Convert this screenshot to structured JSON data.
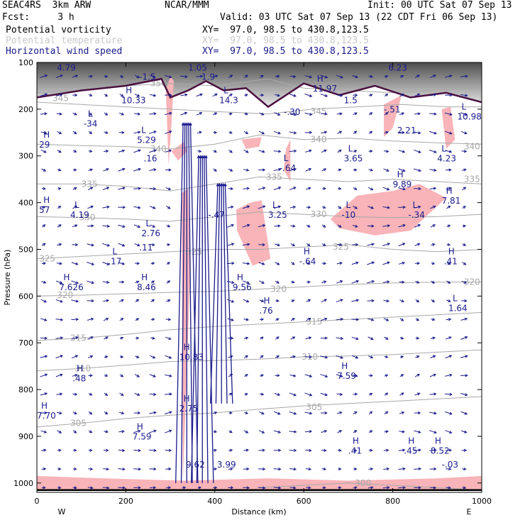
{
  "header": {
    "model": "SEAC4RS  3km ARW",
    "fcst": "Fcst:     3 h",
    "center": "NCAR/MMM",
    "init": "Init: 00 UTC Sat 07 Sep 13",
    "valid": "Valid: 03 UTC Sat 07 Sep 13 (22 CDT Fri 06 Sep 13)",
    "fields": [
      {
        "name": "Potential vorticity",
        "xy": "XY=  97.0, 98.5 to 430.8,123.5",
        "color": "#000000"
      },
      {
        "name": "Potential temperature",
        "xy": "XY=  97.0, 98.5 to 430.8,123.5",
        "color": "#c8c8c8"
      },
      {
        "name": "Horizontal wind speed",
        "xy": "XY=  97.0, 98.5 to 430.8,123.5",
        "color": "#1a1a8c"
      }
    ]
  },
  "chart_data": {
    "type": "cross-section",
    "xlabel": "Distance (km)",
    "ylabel": "Pressure (hPa)",
    "xlim": [
      0,
      1000
    ],
    "ylim": [
      1020,
      100
    ],
    "x_ticks": [
      0,
      200,
      400,
      600,
      800,
      1000
    ],
    "y_ticks": [
      100,
      200,
      300,
      400,
      500,
      600,
      700,
      800,
      900,
      1000
    ],
    "x_end_labels": {
      "left": "W",
      "right": "E"
    },
    "colors": {
      "pv_fill": "#f8b4b8",
      "theta": "#a8a8a8",
      "wind": "#1a1a8c",
      "tropopause": "#4a1040"
    },
    "theta_contours": [
      {
        "label": "350",
        "x": [
          0,
          100,
          200,
          300,
          400,
          520,
          600,
          700,
          800,
          900,
          1000
        ],
        "p": [
          165,
          160,
          150,
          145,
          150,
          135,
          155,
          160,
          165,
          160,
          155
        ]
      },
      {
        "label": "345",
        "x": [
          0,
          100,
          200,
          300,
          400,
          520,
          620,
          720,
          820,
          920,
          1000
        ],
        "p": [
          185,
          190,
          195,
          200,
          205,
          210,
          200,
          195,
          190,
          195,
          195
        ]
      },
      {
        "label": "340",
        "x": [
          0,
          100,
          200,
          300,
          400,
          500,
          600,
          700,
          800,
          900,
          1000
        ],
        "p": [
          275,
          278,
          280,
          285,
          275,
          255,
          265,
          262,
          268,
          272,
          275
        ]
      },
      {
        "label": "335",
        "x": [
          0,
          100,
          200,
          300,
          400,
          500,
          600,
          700,
          800,
          900,
          1000
        ],
        "p": [
          360,
          360,
          365,
          375,
          360,
          345,
          350,
          355,
          350,
          355,
          360
        ]
      },
      {
        "label": "330",
        "x": [
          0,
          100,
          200,
          300,
          400,
          500,
          600,
          700,
          800,
          900,
          1000
        ],
        "p": [
          430,
          432,
          435,
          440,
          430,
          420,
          425,
          430,
          432,
          430,
          425
        ]
      },
      {
        "label": "325",
        "x": [
          0,
          100,
          200,
          300,
          400,
          500,
          600,
          700,
          800,
          900,
          1000
        ],
        "p": [
          520,
          515,
          510,
          505,
          500,
          500,
          495,
          490,
          500,
          505,
          500
        ]
      },
      {
        "label": "320",
        "x": [
          0,
          100,
          200,
          300,
          400,
          500,
          600,
          700,
          800,
          900,
          1000
        ],
        "p": [
          600,
          598,
          595,
          592,
          590,
          585,
          580,
          575,
          572,
          570,
          570
        ]
      },
      {
        "label": "315",
        "x": [
          0,
          100,
          200,
          300,
          400,
          500,
          600,
          700,
          800,
          900,
          1000
        ],
        "p": [
          695,
          690,
          682,
          672,
          665,
          660,
          655,
          650,
          645,
          640,
          635
        ]
      },
      {
        "label": "310",
        "x": [
          0,
          100,
          200,
          300,
          400,
          500,
          600,
          700,
          800,
          900,
          1000
        ],
        "p": [
          760,
          755,
          748,
          740,
          738,
          735,
          730,
          728,
          725,
          720,
          715
        ]
      },
      {
        "label": "305",
        "x": [
          0,
          100,
          200,
          300,
          400,
          500,
          600,
          700,
          800,
          900,
          1000
        ],
        "p": [
          880,
          872,
          862,
          855,
          850,
          842,
          835,
          830,
          825,
          820,
          815
        ]
      },
      {
        "label": "300",
        "x": [
          500,
          600,
          700,
          800,
          900,
          1000
        ],
        "p": [
          1010,
          1005,
          1000,
          1005,
          1010,
          1015
        ]
      }
    ],
    "theta_labels": [
      {
        "text": "350",
        "x": 255,
        "p": 145
      },
      {
        "text": "345",
        "x": 35,
        "p": 177
      },
      {
        "text": "345",
        "x": 615,
        "p": 205
      },
      {
        "text": "340",
        "x": 255,
        "p": 285
      },
      {
        "text": "340",
        "x": 615,
        "p": 265
      },
      {
        "text": "340",
        "x": 960,
        "p": 280
      },
      {
        "text": "335",
        "x": 100,
        "p": 360
      },
      {
        "text": "335",
        "x": 515,
        "p": 345
      },
      {
        "text": "335",
        "x": 960,
        "p": 350
      },
      {
        "text": "330",
        "x": 95,
        "p": 432
      },
      {
        "text": "330",
        "x": 615,
        "p": 425
      },
      {
        "text": "325",
        "x": 5,
        "p": 520
      },
      {
        "text": "325",
        "x": 335,
        "p": 505
      },
      {
        "text": "325",
        "x": 665,
        "p": 495
      },
      {
        "text": "320",
        "x": 45,
        "p": 598
      },
      {
        "text": "320",
        "x": 525,
        "p": 585
      },
      {
        "text": "320",
        "x": 960,
        "p": 570
      },
      {
        "text": "315",
        "x": 75,
        "p": 690
      },
      {
        "text": "315",
        "x": 605,
        "p": 655
      },
      {
        "text": "310",
        "x": 85,
        "p": 755
      },
      {
        "text": "310",
        "x": 595,
        "p": 730
      },
      {
        "text": "305",
        "x": 75,
        "p": 872
      },
      {
        "text": "305",
        "x": 605,
        "p": 838
      },
      {
        "text": "300",
        "x": 715,
        "p": 1000
      }
    ],
    "pv_regions": [
      {
        "x": [
          290,
          300,
          308,
          302,
          296
        ],
        "p": [
          160,
          130,
          140,
          240,
          320
        ]
      },
      {
        "x": [
          302,
          330,
          338,
          318
        ],
        "p": [
          290,
          270,
          290,
          310
        ]
      },
      {
        "x": [
          460,
          505,
          500,
          470
        ],
        "p": [
          265,
          260,
          280,
          285
        ]
      },
      {
        "x": [
          570,
          560,
          555,
          570
        ],
        "p": [
          265,
          285,
          330,
          355
        ]
      },
      {
        "x": [
          780,
          820,
          800,
          780
        ],
        "p": [
          190,
          170,
          240,
          260
        ]
      },
      {
        "x": [
          910,
          930,
          940,
          920
        ],
        "p": [
          200,
          195,
          265,
          285
        ]
      },
      {
        "x": [
          448,
          480,
          505,
          525,
          485,
          450
        ],
        "p": [
          415,
          400,
          395,
          520,
          535,
          460
        ]
      },
      {
        "x": [
          660,
          720,
          800,
          860,
          920,
          840,
          760,
          680
        ],
        "p": [
          435,
          385,
          375,
          360,
          390,
          460,
          470,
          455
        ]
      },
      {
        "x": [
          325,
          340,
          345,
          335,
          328
        ],
        "p": [
          380,
          370,
          540,
          820,
          1000
        ]
      },
      {
        "x": [
          0,
          150,
          330,
          520,
          700,
          900,
          1000,
          1000,
          0
        ],
        "p": [
          985,
          990,
          995,
          990,
          995,
          990,
          985,
          1015,
          1015
        ]
      }
    ],
    "tropopause": {
      "x": [
        0,
        100,
        200,
        280,
        300,
        340,
        380,
        420,
        470,
        520,
        600,
        680,
        760,
        840,
        920,
        1000
      ],
      "p": [
        175,
        160,
        150,
        135,
        175,
        160,
        140,
        160,
        155,
        195,
        145,
        170,
        150,
        175,
        165,
        185
      ]
    },
    "strat_cap_top": 100,
    "wind_columns": [
      {
        "x": 337,
        "p_top": 230,
        "p_bottom": 1000
      },
      {
        "x": 372,
        "p_top": 300,
        "p_bottom": 1000
      },
      {
        "x": 415,
        "p_top": 360,
        "p_bottom": 830
      }
    ],
    "wind_grid": {
      "x_step": 35,
      "p_step": 40,
      "dx": 7,
      "dp": 10
    },
    "extrema": [
      {
        "label": "H",
        "value": "4.79",
        "x": 45,
        "p": 105
      },
      {
        "label": "",
        "value": "-1.5",
        "x": 230,
        "p": 125
      },
      {
        "label": "H",
        "value": "1.05",
        "x": 340,
        "p": 105
      },
      {
        "label": "",
        "value": "1.9",
        "x": 370,
        "p": 125
      },
      {
        "label": "H",
        "value": "10.33",
        "x": 190,
        "p": 175
      },
      {
        "label": "L",
        "value": "-34",
        "x": 105,
        "p": 225
      },
      {
        "label": "H",
        "value": "29",
        "x": 5,
        "p": 270
      },
      {
        "label": "L",
        "value": "5.29",
        "x": 225,
        "p": 260
      },
      {
        "label": "",
        "value": ".16",
        "x": 240,
        "p": 300
      },
      {
        "label": "L",
        "value": "14.3",
        "x": 410,
        "p": 175
      },
      {
        "label": "H",
        "value": "11.97",
        "x": 620,
        "p": 150
      },
      {
        "label": "",
        "value": "-.30",
        "x": 555,
        "p": 200
      },
      {
        "label": "",
        "value": "1.5",
        "x": 690,
        "p": 175
      },
      {
        "label": "H",
        "value": "6.23",
        "x": 790,
        "p": 105
      },
      {
        "label": "",
        "value": "-.51",
        "x": 780,
        "p": 195
      },
      {
        "label": "",
        "value": "2.21",
        "x": 810,
        "p": 240
      },
      {
        "label": "L",
        "value": "10.98",
        "x": 945,
        "p": 210
      },
      {
        "label": "L",
        "value": "-.64",
        "x": 545,
        "p": 320
      },
      {
        "label": "L",
        "value": "3.65",
        "x": 690,
        "p": 300
      },
      {
        "label": "L",
        "value": "4.23",
        "x": 900,
        "p": 300
      },
      {
        "label": "H",
        "value": "9.89",
        "x": 800,
        "p": 355
      },
      {
        "label": "H",
        "value": "7.81",
        "x": 910,
        "p": 390
      },
      {
        "label": "H",
        "value": "57",
        "x": 5,
        "p": 410
      },
      {
        "label": "L",
        "value": "4.19",
        "x": 75,
        "p": 420
      },
      {
        "label": "L",
        "value": "3.25",
        "x": 520,
        "p": 420
      },
      {
        "label": "L",
        "value": "-10",
        "x": 685,
        "p": 420
      },
      {
        "label": "L",
        "value": "-.34",
        "x": 835,
        "p": 420
      },
      {
        "label": "",
        "value": "-.47",
        "x": 385,
        "p": 420
      },
      {
        "label": "L",
        "value": "2.76",
        "x": 235,
        "p": 460
      },
      {
        "label": "",
        "value": ".11",
        "x": 230,
        "p": 490
      },
      {
        "label": "L",
        "value": ".17",
        "x": 160,
        "p": 520
      },
      {
        "label": "H",
        "value": "-.64",
        "x": 590,
        "p": 520
      },
      {
        "label": "H",
        "value": ".41",
        "x": 915,
        "p": 520
      },
      {
        "label": "H",
        "value": "7.626",
        "x": 50,
        "p": 575
      },
      {
        "label": "H",
        "value": "8.46",
        "x": 225,
        "p": 575
      },
      {
        "label": "H",
        "value": "9.56",
        "x": 440,
        "p": 575
      },
      {
        "label": "H",
        "value": ".76",
        "x": 500,
        "p": 625
      },
      {
        "label": "L",
        "value": "1.64",
        "x": 925,
        "p": 620
      },
      {
        "label": "H",
        "value": "10.83",
        "x": 320,
        "p": 725
      },
      {
        "label": "H",
        "value": ".48",
        "x": 80,
        "p": 770
      },
      {
        "label": "H",
        "value": "7.59",
        "x": 675,
        "p": 765
      },
      {
        "label": "H",
        "value": "2.75",
        "x": 320,
        "p": 835
      },
      {
        "label": "H",
        "value": "7.70",
        "x": 0,
        "p": 850
      },
      {
        "label": "H",
        "value": "7.59",
        "x": 215,
        "p": 895
      },
      {
        "label": "H",
        "value": ".41",
        "x": 700,
        "p": 925
      },
      {
        "label": "H",
        "value": ".45",
        "x": 825,
        "p": 925
      },
      {
        "label": "H",
        "value": "8.52",
        "x": 885,
        "p": 925
      },
      {
        "label": "",
        "value": "-.03",
        "x": 910,
        "p": 955
      },
      {
        "label": "",
        "value": "9.62",
        "x": 335,
        "p": 955
      },
      {
        "label": "",
        "value": "3.99",
        "x": 405,
        "p": 955
      }
    ]
  }
}
